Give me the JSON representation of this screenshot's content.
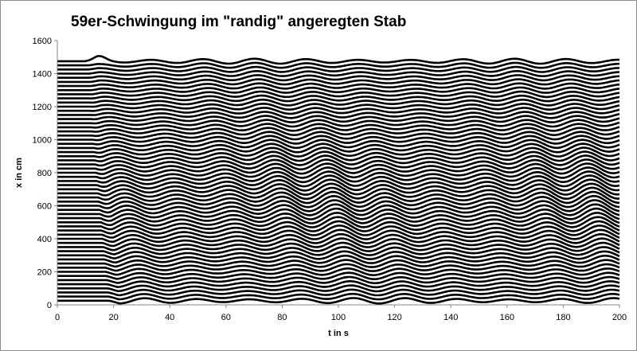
{
  "chart_data": {
    "type": "line",
    "title": "59er-Schwingung im \"randig\" angeregten Stab",
    "xlabel": "t in s",
    "ylabel": "x in cm",
    "xlim": [
      0,
      200
    ],
    "ylim": [
      0,
      1600
    ],
    "x_ticks": [
      0,
      20,
      40,
      60,
      80,
      100,
      120,
      140,
      160,
      180,
      200
    ],
    "y_ticks": [
      0,
      200,
      400,
      600,
      800,
      1000,
      1200,
      1400,
      1600
    ],
    "grid": false,
    "legend": "none",
    "line_color": "#000000",
    "series_count": 59,
    "series_spacing": 25,
    "start_time": 10,
    "period": 18.5,
    "base_amplitude": 15,
    "peak_amplitude": 34,
    "top_initial_bump": 43,
    "x_step": 0.5
  }
}
